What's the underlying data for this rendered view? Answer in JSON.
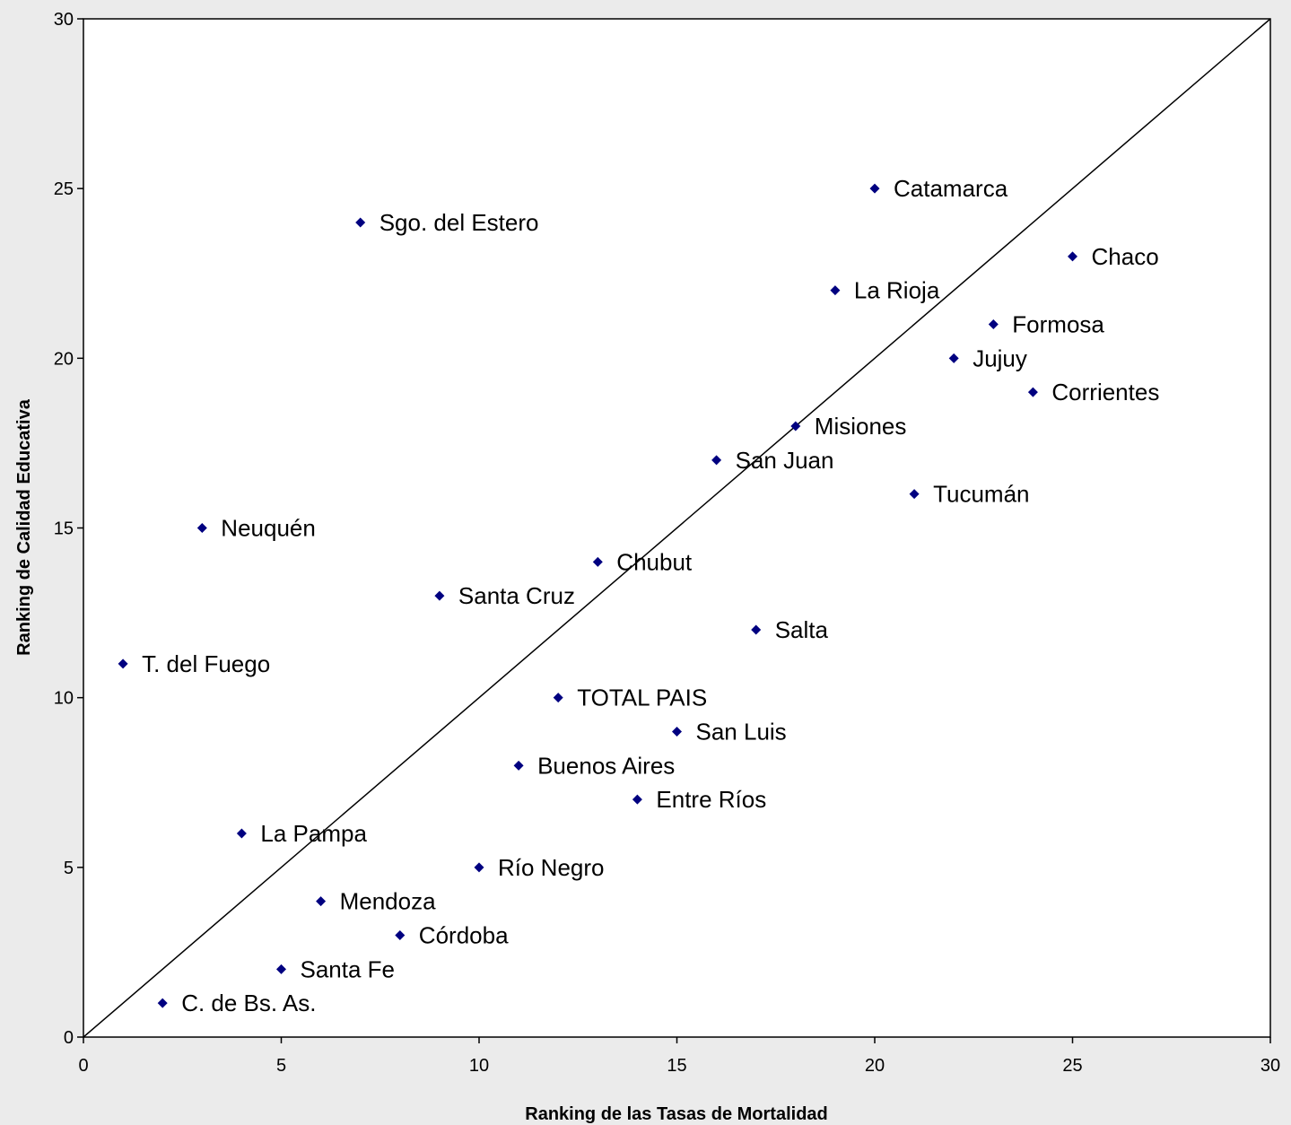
{
  "chart_data": {
    "type": "scatter",
    "title": "",
    "xlabel": "Ranking de las Tasas de Mortalidad",
    "ylabel": "Ranking de Calidad Educativa",
    "xlim": [
      0,
      30
    ],
    "ylim": [
      0,
      30
    ],
    "xticks": [
      0,
      5,
      10,
      15,
      20,
      25,
      30
    ],
    "yticks": [
      0,
      5,
      10,
      15,
      20,
      25,
      30
    ],
    "grid": false,
    "marker": "diamond",
    "marker_color": "#000080",
    "reference_line": {
      "from": [
        0,
        0
      ],
      "to": [
        30,
        30
      ],
      "color": "#000000"
    },
    "points": [
      {
        "label": "Catamarca",
        "x": 20,
        "y": 25
      },
      {
        "label": "Sgo. del Estero",
        "x": 7,
        "y": 24
      },
      {
        "label": "Chaco",
        "x": 25,
        "y": 23
      },
      {
        "label": "La Rioja",
        "x": 19,
        "y": 22
      },
      {
        "label": "Formosa",
        "x": 23,
        "y": 21
      },
      {
        "label": "Jujuy",
        "x": 22,
        "y": 20
      },
      {
        "label": "Corrientes",
        "x": 24,
        "y": 19
      },
      {
        "label": "Misiones",
        "x": 18,
        "y": 18
      },
      {
        "label": "San Juan",
        "x": 16,
        "y": 17
      },
      {
        "label": "Tucumán",
        "x": 21,
        "y": 16
      },
      {
        "label": "Neuquén",
        "x": 3,
        "y": 15
      },
      {
        "label": "Chubut",
        "x": 13,
        "y": 14
      },
      {
        "label": "Santa Cruz",
        "x": 9,
        "y": 13
      },
      {
        "label": "Salta",
        "x": 17,
        "y": 12
      },
      {
        "label": "T. del Fuego",
        "x": 1,
        "y": 11
      },
      {
        "label": "TOTAL PAIS",
        "x": 12,
        "y": 10
      },
      {
        "label": "San Luis",
        "x": 15,
        "y": 9
      },
      {
        "label": "Buenos Aires",
        "x": 11,
        "y": 8
      },
      {
        "label": "Entre Ríos",
        "x": 14,
        "y": 7
      },
      {
        "label": "La Pampa",
        "x": 4,
        "y": 6
      },
      {
        "label": "Río Negro",
        "x": 10,
        "y": 5
      },
      {
        "label": "Mendoza",
        "x": 6,
        "y": 4
      },
      {
        "label": "Córdoba",
        "x": 8,
        "y": 3
      },
      {
        "label": "Santa Fe",
        "x": 5,
        "y": 2
      },
      {
        "label": "C. de Bs. As.",
        "x": 2,
        "y": 1
      }
    ]
  }
}
